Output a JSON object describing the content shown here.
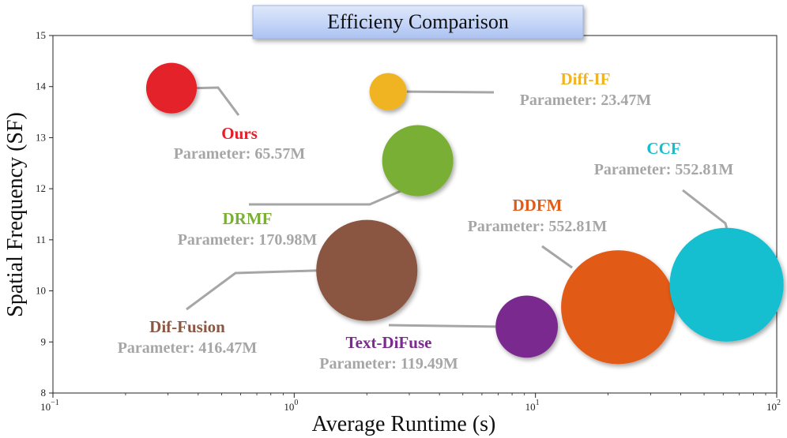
{
  "chart_data": {
    "type": "scatter",
    "title": "Efficieny Comparison",
    "xlabel": "Average Runtime (s)",
    "ylabel": "Spatial Frequency (SF)",
    "xscale": "log",
    "xlim": [
      0.1,
      100
    ],
    "ylim": [
      8,
      15
    ],
    "xticks": [
      {
        "base": "10",
        "exp": "−1"
      },
      {
        "base": "10",
        "exp": "0"
      },
      {
        "base": "10",
        "exp": "1"
      },
      {
        "base": "10",
        "exp": "2"
      }
    ],
    "yticks": [
      "8",
      "9",
      "10",
      "11",
      "12",
      "13",
      "14",
      "15"
    ],
    "points": [
      {
        "name": "Ours",
        "param_label": "Parameter: 65.57M",
        "parameters_m": 65.57,
        "runtime": 0.31,
        "sf": 13.97,
        "color": "#e3202a"
      },
      {
        "name": "Diff-IF",
        "param_label": "Parameter: 23.47M",
        "parameters_m": 23.47,
        "runtime": 2.45,
        "sf": 13.9,
        "color": "#f0b323"
      },
      {
        "name": "DRMF",
        "param_label": "Parameter: 170.98M",
        "parameters_m": 170.98,
        "runtime": 3.25,
        "sf": 12.55,
        "color": "#7aaf35"
      },
      {
        "name": "Dif-Fusion",
        "param_label": "Parameter: 416.47M",
        "parameters_m": 416.47,
        "runtime": 2.0,
        "sf": 10.4,
        "color": "#8a5742"
      },
      {
        "name": "Text-DiFuse",
        "param_label": "Parameter: 119.49M",
        "parameters_m": 119.49,
        "runtime": 9.2,
        "sf": 9.3,
        "color": "#7a2c8e"
      },
      {
        "name": "DDFM",
        "param_label": "Parameter: 552.81M",
        "parameters_m": 552.81,
        "runtime": 22.0,
        "sf": 9.68,
        "color": "#e15a17"
      },
      {
        "name": "CCF",
        "param_label": "Parameter: 552.81M",
        "parameters_m": 552.81,
        "runtime": 62.0,
        "sf": 10.12,
        "color": "#13bfcf"
      }
    ]
  }
}
